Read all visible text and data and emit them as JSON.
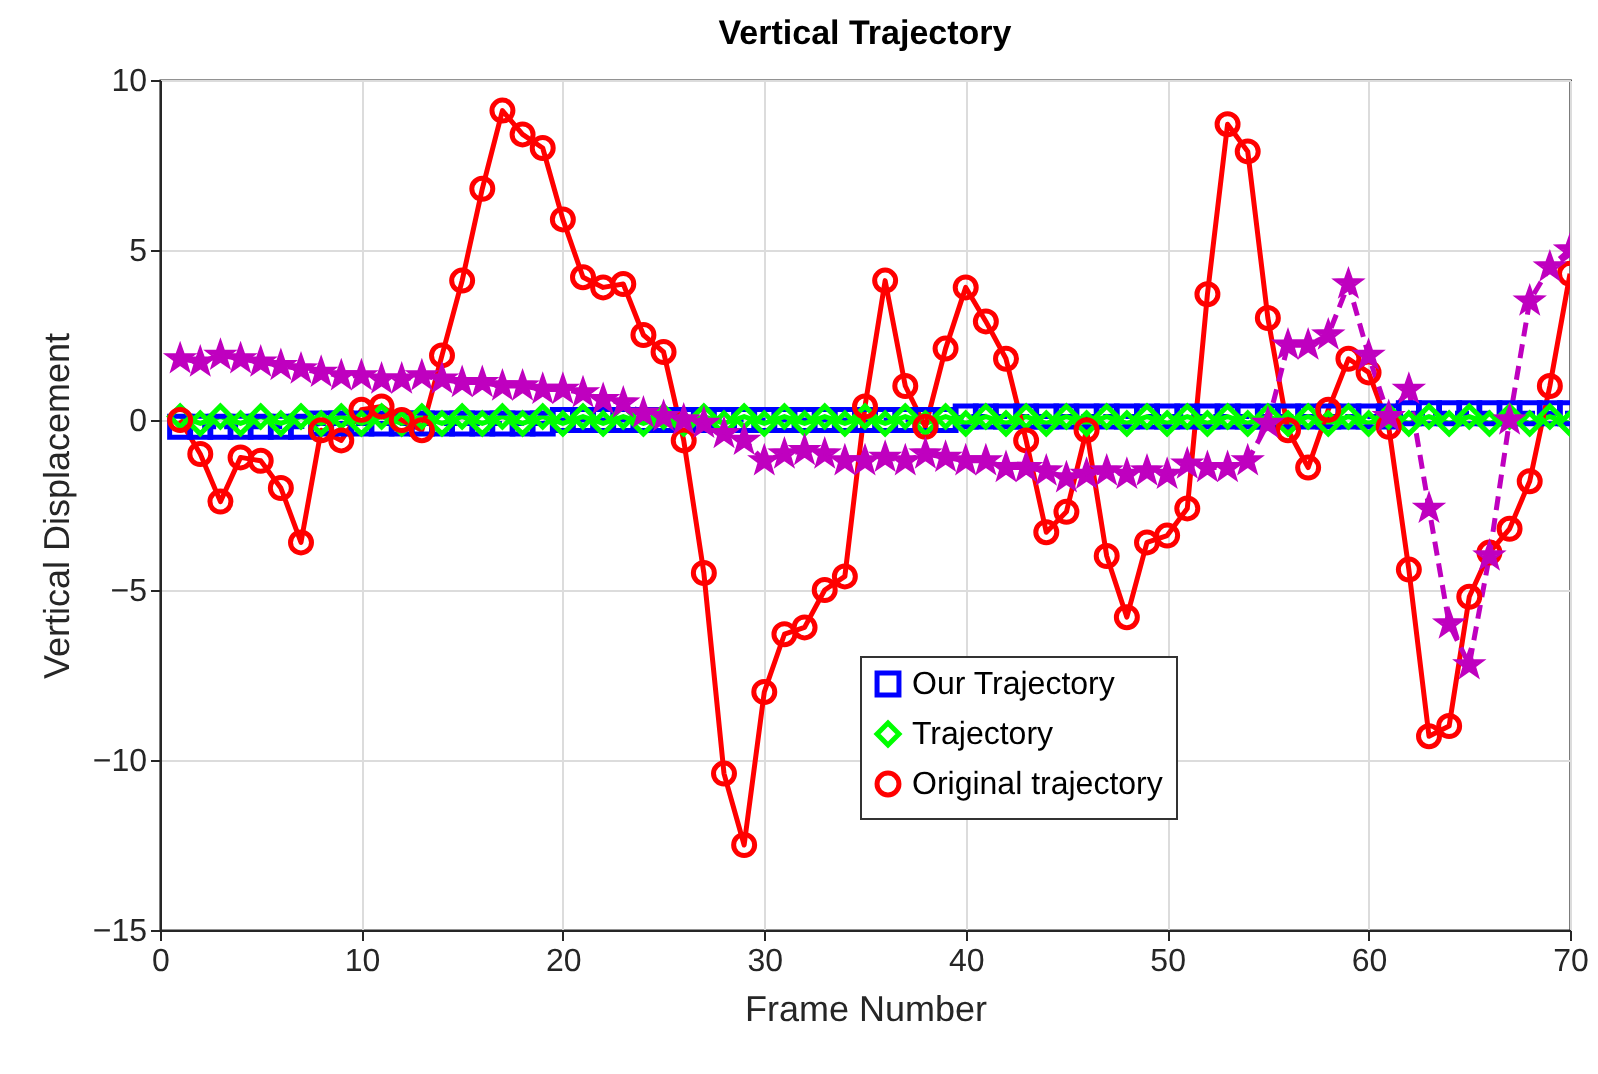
{
  "chart_data": {
    "type": "line",
    "title": "Vertical Trajectory",
    "xlabel": "Frame Number",
    "ylabel": "Vertical Displacement",
    "x": [
      1,
      2,
      3,
      4,
      5,
      6,
      7,
      8,
      9,
      10,
      11,
      12,
      13,
      14,
      15,
      16,
      17,
      18,
      19,
      20,
      21,
      22,
      23,
      24,
      25,
      26,
      27,
      28,
      29,
      30,
      31,
      32,
      33,
      34,
      35,
      36,
      37,
      38,
      39,
      40,
      41,
      42,
      43,
      44,
      45,
      46,
      47,
      48,
      49,
      50,
      51,
      52,
      53,
      54,
      55,
      56,
      57,
      58,
      59,
      60,
      61,
      62,
      63,
      64,
      65,
      66,
      67,
      68,
      69,
      70
    ],
    "xlim": [
      0,
      70
    ],
    "xticks": [
      0,
      10,
      20,
      30,
      40,
      50,
      60,
      70
    ],
    "ylim": [
      -15,
      10
    ],
    "yticks": [
      -15,
      -10,
      -5,
      0,
      5,
      10
    ],
    "grid": true,
    "legend": "bottom right",
    "series": [
      {
        "name": "Our Trajectory",
        "color": "#0000ff",
        "marker": "square",
        "line_style": "dashed",
        "values": [
          -0.2,
          -0.2,
          -0.2,
          -0.2,
          -0.2,
          -0.2,
          -0.2,
          -0.1,
          -0.1,
          -0.1,
          -0.1,
          -0.1,
          -0.1,
          -0.1,
          -0.1,
          -0.1,
          -0.1,
          -0.1,
          -0.1,
          0,
          0,
          0,
          0,
          0,
          0,
          0,
          0,
          0,
          0,
          0,
          0,
          0,
          0,
          0,
          0,
          0,
          0,
          0,
          0,
          0.1,
          0.1,
          0.1,
          0.1,
          0.1,
          0.1,
          0.1,
          0.1,
          0.1,
          0.1,
          0.1,
          0.1,
          0.1,
          0.1,
          0.1,
          0.1,
          0.1,
          0.1,
          0.1,
          0.1,
          0.1,
          0.1,
          0.2,
          0.2,
          0.2,
          0.2,
          0.2,
          0.2,
          0.2,
          0.2,
          0.2
        ]
      },
      {
        "name": "Trajectory",
        "color": "#00ff00",
        "marker": "diamond",
        "line_style": "solid",
        "values": [
          0.1,
          -0.1,
          0.1,
          -0.1,
          0.1,
          -0.1,
          0.1,
          -0.1,
          0.1,
          -0.1,
          0.1,
          -0.1,
          0.1,
          -0.1,
          0.1,
          -0.1,
          0.1,
          -0.1,
          0.1,
          -0.1,
          0.1,
          -0.1,
          0.1,
          -0.1,
          0.1,
          -0.1,
          0.1,
          -0.1,
          0.1,
          -0.1,
          0.1,
          -0.1,
          0.1,
          -0.1,
          0.1,
          -0.1,
          0.1,
          -0.1,
          0.1,
          -0.1,
          0.1,
          -0.1,
          0.1,
          -0.1,
          0.1,
          -0.1,
          0.1,
          -0.1,
          0.1,
          -0.1,
          0.1,
          -0.1,
          0.1,
          -0.1,
          0.1,
          -0.1,
          0.1,
          -0.1,
          0.1,
          -0.1,
          0.1,
          -0.1,
          0.1,
          -0.1,
          0.1,
          -0.1,
          0.1,
          -0.1,
          0.1,
          -0.1
        ]
      },
      {
        "name": "Original trajectory",
        "color": "#ff0000",
        "marker": "circle",
        "line_style": "solid",
        "values": [
          0,
          -1,
          -2.4,
          -1.1,
          -1.2,
          -2,
          -3.6,
          -0.3,
          -0.6,
          0.3,
          0.4,
          0,
          -0.3,
          1.9,
          4.1,
          6.8,
          9.1,
          8.4,
          8,
          5.9,
          4.2,
          3.9,
          4,
          2.5,
          2,
          -0.6,
          -4.5,
          -10.4,
          -12.5,
          -8,
          -6.3,
          -6.1,
          -5,
          -4.6,
          0.4,
          4.1,
          1,
          -0.2,
          2.1,
          3.9,
          2.9,
          1.8,
          -0.6,
          -3.3,
          -2.7,
          -0.3,
          -4,
          -5.8,
          -3.6,
          -3.4,
          -2.6,
          3.7,
          8.7,
          7.9,
          3,
          -0.3,
          -1.4,
          0.3,
          1.8,
          1.4,
          -0.2,
          -4.4,
          -9.3,
          -9,
          -5.2,
          -3.9,
          -3.2,
          -1.8,
          1,
          4.3
        ]
      },
      {
        "color": "#bf00bf",
        "marker": "star",
        "line_style": "dashed",
        "values": [
          1.8,
          1.7,
          1.9,
          1.8,
          1.7,
          1.6,
          1.5,
          1.4,
          1.3,
          1.3,
          1.2,
          1.2,
          1.3,
          1.2,
          1.1,
          1.1,
          1,
          1,
          0.9,
          0.9,
          0.8,
          0.6,
          0.5,
          0.2,
          0.1,
          0,
          -0.1,
          -0.4,
          -0.6,
          -1.2,
          -1,
          -0.9,
          -1,
          -1.2,
          -1.2,
          -1.1,
          -1.2,
          -1,
          -1.1,
          -1.2,
          -1.2,
          -1.4,
          -1.4,
          -1.5,
          -1.7,
          -1.6,
          -1.5,
          -1.6,
          -1.5,
          -1.6,
          -1.3,
          -1.4,
          -1.4,
          -1.2,
          -0.1,
          2.2,
          2.2,
          2.5,
          4,
          1.9,
          0.1,
          0.9,
          -2.6,
          -6,
          -7.2,
          -4,
          0,
          3.5,
          4.5,
          5
        ]
      }
    ]
  }
}
